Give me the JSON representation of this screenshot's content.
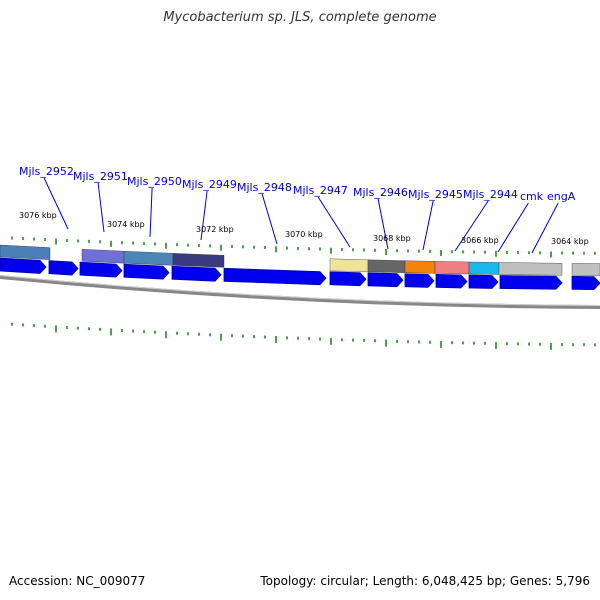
{
  "title": "Mycobacterium sp. JLS, complete genome",
  "genes": [
    {
      "name": "Mjls_2952"
    },
    {
      "name": "Mjls_2951"
    },
    {
      "name": "Mjls_2950"
    },
    {
      "name": "Mjls_2949"
    },
    {
      "name": "Mjls_2948"
    },
    {
      "name": "Mjls_2947"
    },
    {
      "name": "Mjls_2946"
    },
    {
      "name": "Mjls_2945"
    },
    {
      "name": "Mjls_2944"
    },
    {
      "name": "cmk"
    },
    {
      "name": "engA"
    }
  ],
  "kbp_labels": [
    "3076 kbp",
    "3074 kbp",
    "3072 kbp",
    "3070 kbp",
    "3068 kbp",
    "3066 kbp",
    "3064 kbp"
  ],
  "footer": {
    "accession": "Accession: NC_009077",
    "summary": "Topology: circular; Length: 6,048,425 bp; Genes: 5,796"
  },
  "colors": {
    "gene_arrow": "#0000ee",
    "label": "#0000cc",
    "tick": "#007700",
    "backbone": "#888888"
  }
}
